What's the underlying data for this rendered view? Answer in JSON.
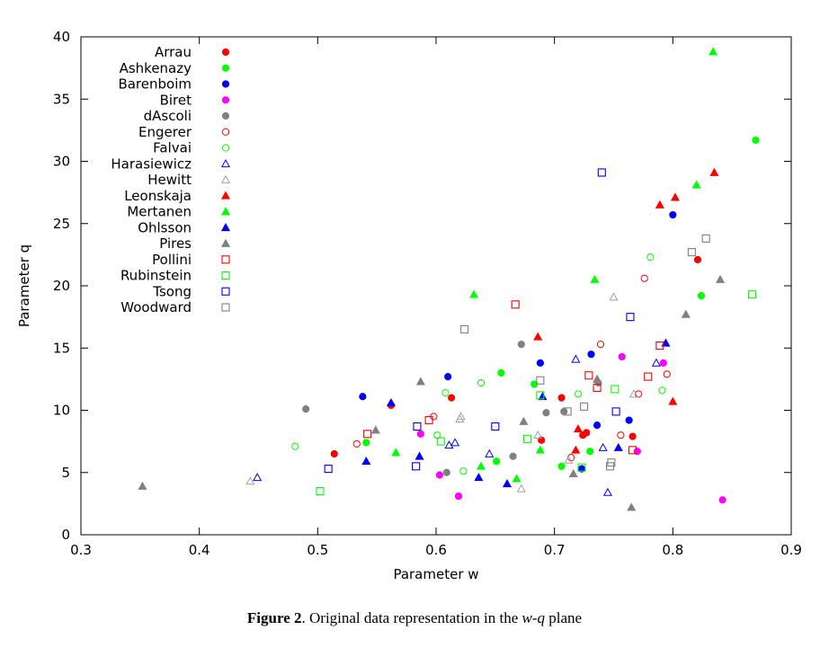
{
  "chart_data": {
    "type": "scatter",
    "title": "",
    "xlabel": "Parameter w",
    "ylabel": "Parameter q",
    "xlim": [
      0.3,
      0.9
    ],
    "ylim": [
      0,
      40
    ],
    "xticks": [
      "0.3",
      "0.4",
      "0.5",
      "0.6",
      "0.7",
      "0.8",
      "0.9"
    ],
    "yticks": [
      "0",
      "5",
      "10",
      "15",
      "20",
      "25",
      "30",
      "35",
      "40"
    ],
    "grid": false,
    "legend_position": "top-left",
    "series": [
      {
        "name": "Arrau",
        "color": "#ff0000",
        "marker": "circle-filled",
        "points": [
          [
            0.514,
            6.5
          ],
          [
            0.562,
            10.4
          ],
          [
            0.613,
            11.0
          ],
          [
            0.689,
            7.6
          ],
          [
            0.706,
            11.0
          ],
          [
            0.724,
            8.0
          ],
          [
            0.727,
            8.2
          ],
          [
            0.766,
            7.9
          ],
          [
            0.821,
            22.1
          ]
        ]
      },
      {
        "name": "Ashkenazy",
        "color": "#00ff00",
        "marker": "circle-filled",
        "points": [
          [
            0.541,
            7.4
          ],
          [
            0.651,
            5.9
          ],
          [
            0.655,
            13.0
          ],
          [
            0.683,
            12.1
          ],
          [
            0.706,
            5.5
          ],
          [
            0.73,
            6.7
          ],
          [
            0.824,
            19.2
          ],
          [
            0.87,
            31.7
          ]
        ]
      },
      {
        "name": "Barenboim",
        "color": "#0000ff",
        "marker": "circle-filled",
        "points": [
          [
            0.538,
            11.1
          ],
          [
            0.61,
            12.7
          ],
          [
            0.688,
            13.8
          ],
          [
            0.723,
            5.3
          ],
          [
            0.731,
            14.5
          ],
          [
            0.736,
            8.8
          ],
          [
            0.763,
            9.2
          ],
          [
            0.8,
            25.7
          ]
        ]
      },
      {
        "name": "Biret",
        "color": "#ff00ff",
        "marker": "circle-filled",
        "points": [
          [
            0.587,
            8.1
          ],
          [
            0.603,
            4.8
          ],
          [
            0.619,
            3.1
          ],
          [
            0.757,
            14.3
          ],
          [
            0.77,
            6.7
          ],
          [
            0.792,
            13.8
          ],
          [
            0.842,
            2.8
          ]
        ]
      },
      {
        "name": "dAscoli",
        "color": "#808080",
        "marker": "circle-filled",
        "points": [
          [
            0.49,
            10.1
          ],
          [
            0.609,
            5.0
          ],
          [
            0.665,
            6.3
          ],
          [
            0.672,
            15.3
          ],
          [
            0.693,
            9.8
          ],
          [
            0.708,
            9.9
          ],
          [
            0.737,
            12.2
          ]
        ]
      },
      {
        "name": "Engerer",
        "color": "#ff0000",
        "marker": "circle-open",
        "points": [
          [
            0.533,
            7.3
          ],
          [
            0.598,
            9.5
          ],
          [
            0.714,
            6.2
          ],
          [
            0.739,
            15.3
          ],
          [
            0.756,
            8.0
          ],
          [
            0.771,
            11.3
          ],
          [
            0.776,
            20.6
          ],
          [
            0.795,
            12.9
          ]
        ]
      },
      {
        "name": "Falvai",
        "color": "#00ff00",
        "marker": "circle-open",
        "points": [
          [
            0.481,
            7.1
          ],
          [
            0.601,
            8.0
          ],
          [
            0.608,
            11.4
          ],
          [
            0.623,
            5.1
          ],
          [
            0.638,
            12.2
          ],
          [
            0.72,
            11.3
          ],
          [
            0.781,
            22.3
          ],
          [
            0.791,
            11.6
          ]
        ]
      },
      {
        "name": "Harasiewicz",
        "color": "#0000ff",
        "marker": "triangle-open",
        "points": [
          [
            0.449,
            4.6
          ],
          [
            0.611,
            7.2
          ],
          [
            0.616,
            7.4
          ],
          [
            0.645,
            6.5
          ],
          [
            0.718,
            14.1
          ],
          [
            0.741,
            7.0
          ],
          [
            0.745,
            3.4
          ],
          [
            0.786,
            13.8
          ]
        ]
      },
      {
        "name": "Hewitt",
        "color": "#a0a0a0",
        "marker": "triangle-open",
        "points": [
          [
            0.443,
            4.3
          ],
          [
            0.62,
            9.3
          ],
          [
            0.621,
            9.5
          ],
          [
            0.672,
            3.7
          ],
          [
            0.686,
            8.0
          ],
          [
            0.712,
            6.0
          ],
          [
            0.75,
            19.1
          ],
          [
            0.767,
            11.3
          ]
        ]
      },
      {
        "name": "Leonskaja",
        "color": "#ff0000",
        "marker": "triangle-filled",
        "points": [
          [
            0.686,
            15.9
          ],
          [
            0.718,
            6.8
          ],
          [
            0.72,
            8.5
          ],
          [
            0.789,
            26.5
          ],
          [
            0.8,
            10.7
          ],
          [
            0.802,
            27.1
          ],
          [
            0.835,
            29.1
          ]
        ]
      },
      {
        "name": "Mertanen",
        "color": "#00ff00",
        "marker": "triangle-filled",
        "points": [
          [
            0.566,
            6.6
          ],
          [
            0.632,
            19.3
          ],
          [
            0.638,
            5.5
          ],
          [
            0.668,
            4.5
          ],
          [
            0.688,
            6.8
          ],
          [
            0.734,
            20.5
          ],
          [
            0.82,
            28.1
          ],
          [
            0.834,
            38.8
          ]
        ]
      },
      {
        "name": "Ohlsson",
        "color": "#0000ff",
        "marker": "triangle-filled",
        "points": [
          [
            0.541,
            5.9
          ],
          [
            0.562,
            10.6
          ],
          [
            0.586,
            6.3
          ],
          [
            0.636,
            4.6
          ],
          [
            0.66,
            4.1
          ],
          [
            0.69,
            11.1
          ],
          [
            0.754,
            7.0
          ],
          [
            0.794,
            15.4
          ]
        ]
      },
      {
        "name": "Pires",
        "color": "#808080",
        "marker": "triangle-filled",
        "points": [
          [
            0.352,
            3.9
          ],
          [
            0.549,
            8.4
          ],
          [
            0.587,
            12.3
          ],
          [
            0.674,
            9.1
          ],
          [
            0.716,
            4.9
          ],
          [
            0.736,
            12.5
          ],
          [
            0.765,
            2.2
          ],
          [
            0.811,
            17.7
          ],
          [
            0.84,
            20.5
          ]
        ]
      },
      {
        "name": "Pollini",
        "color": "#ff0000",
        "marker": "square-open",
        "points": [
          [
            0.542,
            8.1
          ],
          [
            0.594,
            9.2
          ],
          [
            0.667,
            18.5
          ],
          [
            0.729,
            12.8
          ],
          [
            0.736,
            11.8
          ],
          [
            0.766,
            6.8
          ],
          [
            0.779,
            12.7
          ],
          [
            0.789,
            15.2
          ]
        ]
      },
      {
        "name": "Rubinstein",
        "color": "#00ff00",
        "marker": "square-open",
        "points": [
          [
            0.502,
            3.5
          ],
          [
            0.604,
            7.5
          ],
          [
            0.677,
            7.7
          ],
          [
            0.688,
            11.2
          ],
          [
            0.723,
            5.4
          ],
          [
            0.751,
            11.7
          ],
          [
            0.867,
            19.3
          ]
        ]
      },
      {
        "name": "Tsong",
        "color": "#0000ff",
        "marker": "square-open",
        "points": [
          [
            0.509,
            5.3
          ],
          [
            0.583,
            5.5
          ],
          [
            0.584,
            8.7
          ],
          [
            0.65,
            8.7
          ],
          [
            0.74,
            29.1
          ],
          [
            0.752,
            9.9
          ],
          [
            0.764,
            17.5
          ]
        ]
      },
      {
        "name": "Woodward",
        "color": "#808080",
        "marker": "square-open",
        "points": [
          [
            0.624,
            16.5
          ],
          [
            0.688,
            12.4
          ],
          [
            0.711,
            9.9
          ],
          [
            0.725,
            10.3
          ],
          [
            0.747,
            5.5
          ],
          [
            0.748,
            5.8
          ],
          [
            0.816,
            22.7
          ],
          [
            0.828,
            23.8
          ]
        ]
      }
    ]
  },
  "caption": {
    "label": "Figure 2",
    "text": ". Original data representation in the ",
    "var1": "w",
    "dash": "-",
    "var2": "q",
    "tail": " plane"
  }
}
